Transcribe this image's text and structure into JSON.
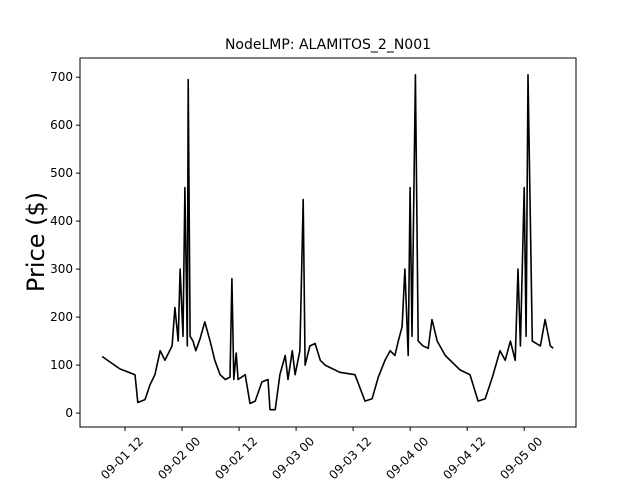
{
  "chart_data": {
    "type": "line",
    "title": "NodeLMP: ALAMITOS_2_N001",
    "ylabel": "Price ($)",
    "x": [
      7.2,
      10.9,
      14.1,
      14.7,
      16.2,
      17.3,
      18.3,
      19.4,
      20.4,
      21.9,
      22.5,
      23.2,
      23.6,
      24.2,
      24.6,
      25.1,
      25.3,
      25.7,
      26.3,
      26.9,
      27.8,
      28.8,
      29.9,
      30.9,
      32,
      33.1,
      34.1,
      34.5,
      34.9,
      35.4,
      35.8,
      37.3,
      38.3,
      39.4,
      40.8,
      42.1,
      42.5,
      43.6,
      44.6,
      45.7,
      46.3,
      47.2,
      47.8,
      48.8,
      49.5,
      49.9,
      50.9,
      52,
      53.1,
      54.1,
      57.2,
      60.4,
      62.5,
      64,
      65.3,
      66.7,
      67.8,
      68.8,
      69.5,
      70.3,
      70.9,
      71.6,
      72,
      72.4,
      73.1,
      73.7,
      74.7,
      75.8,
      76.6,
      77.7,
      79.4,
      82.5,
      84.6,
      86.3,
      87.8,
      89.3,
      90.9,
      92,
      93.1,
      94.1,
      94.7,
      95.2,
      96,
      96.4,
      96.8,
      97.7,
      99.4,
      100.4,
      101.5,
      102.1
    ],
    "series": [
      {
        "name": "Price",
        "color": "#000000",
        "values": [
          118,
          92,
          80,
          22,
          28,
          60,
          80,
          130,
          110,
          140,
          220,
          150,
          300,
          160,
          470,
          140,
          695,
          160,
          150,
          130,
          155,
          190,
          150,
          110,
          80,
          70,
          75,
          280,
          70,
          125,
          70,
          80,
          20,
          25,
          65,
          70,
          7,
          7,
          80,
          120,
          70,
          130,
          80,
          130,
          445,
          100,
          140,
          145,
          110,
          100,
          85,
          80,
          25,
          30,
          75,
          110,
          130,
          120,
          150,
          180,
          300,
          120,
          470,
          160,
          705,
          150,
          140,
          135,
          195,
          150,
          120,
          90,
          80,
          25,
          30,
          75,
          130,
          110,
          150,
          110,
          300,
          140,
          470,
          160,
          705,
          150,
          140,
          195,
          140,
          135
        ]
      }
    ],
    "xlim": [
      2.53,
      106.9
    ],
    "ylim": [
      -29,
      740
    ],
    "xticks": [
      {
        "value": 12,
        "label": "09-01 12"
      },
      {
        "value": 24,
        "label": "09-02 00"
      },
      {
        "value": 36,
        "label": "09-02 12"
      },
      {
        "value": 48,
        "label": "09-03 00"
      },
      {
        "value": 60,
        "label": "09-03 12"
      },
      {
        "value": 72,
        "label": "09-04 00"
      },
      {
        "value": 84,
        "label": "09-04 12"
      },
      {
        "value": 96,
        "label": "09-05 00"
      }
    ],
    "yticks": [
      0,
      100,
      200,
      300,
      400,
      500,
      600,
      700
    ]
  }
}
